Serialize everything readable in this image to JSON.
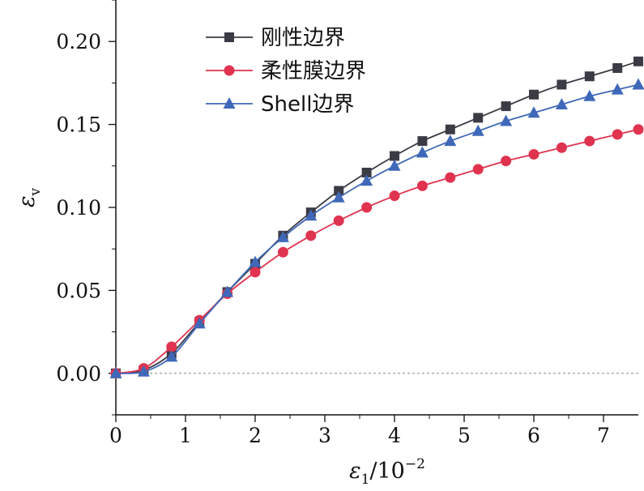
{
  "chart_data": {
    "type": "line",
    "xlabel_symbol": "ε",
    "xlabel_sub": "1",
    "xlabel_suffix": "/10",
    "xlabel_sup": "−2",
    "ylabel_symbol": "ε",
    "ylabel_sub": "v",
    "xlim": [
      0,
      7.5
    ],
    "ylim": [
      -0.025,
      0.225
    ],
    "xticks": [
      0,
      1,
      2,
      3,
      4,
      5,
      6,
      7
    ],
    "xtick_labels": [
      "0",
      "1",
      "2",
      "3",
      "4",
      "5",
      "6",
      "7"
    ],
    "yticks": [
      0.0,
      0.05,
      0.1,
      0.15,
      0.2
    ],
    "ytick_labels": [
      "0.00",
      "0.05",
      "0.10",
      "0.15",
      "0.20"
    ],
    "reference_line": {
      "y": 0,
      "style": "dashed",
      "color": "#888888"
    },
    "legend_position": "top-left",
    "series": [
      {
        "name": "刚性边界",
        "color": "#3b3b45",
        "marker": "square",
        "x": [
          0,
          0.4,
          0.8,
          1.2,
          1.6,
          2.0,
          2.4,
          2.8,
          3.2,
          3.6,
          4.0,
          4.4,
          4.8,
          5.2,
          5.6,
          6.0,
          6.4,
          6.8,
          7.2,
          7.5
        ],
        "values": [
          0.0,
          0.002,
          0.012,
          0.031,
          0.049,
          0.066,
          0.083,
          0.097,
          0.11,
          0.121,
          0.131,
          0.14,
          0.147,
          0.154,
          0.161,
          0.168,
          0.174,
          0.179,
          0.184,
          0.188
        ]
      },
      {
        "name": "柔性膜边界",
        "color": "#e0334f",
        "marker": "circle",
        "x": [
          0,
          0.4,
          0.8,
          1.2,
          1.6,
          2.0,
          2.4,
          2.8,
          3.2,
          3.6,
          4.0,
          4.4,
          4.8,
          5.2,
          5.6,
          6.0,
          6.4,
          6.8,
          7.2,
          7.5
        ],
        "values": [
          0.0,
          0.003,
          0.016,
          0.032,
          0.048,
          0.061,
          0.073,
          0.083,
          0.092,
          0.1,
          0.107,
          0.113,
          0.118,
          0.123,
          0.128,
          0.132,
          0.136,
          0.14,
          0.144,
          0.147
        ]
      },
      {
        "name": "Shell边界",
        "color": "#3f68b8",
        "marker": "triangle",
        "x": [
          0,
          0.4,
          0.8,
          1.2,
          1.6,
          2.0,
          2.4,
          2.8,
          3.2,
          3.6,
          4.0,
          4.4,
          4.8,
          5.2,
          5.6,
          6.0,
          6.4,
          6.8,
          7.2,
          7.5
        ],
        "values": [
          0.0,
          0.001,
          0.01,
          0.03,
          0.049,
          0.067,
          0.082,
          0.095,
          0.106,
          0.116,
          0.125,
          0.133,
          0.14,
          0.146,
          0.152,
          0.157,
          0.162,
          0.167,
          0.171,
          0.174
        ]
      }
    ]
  }
}
